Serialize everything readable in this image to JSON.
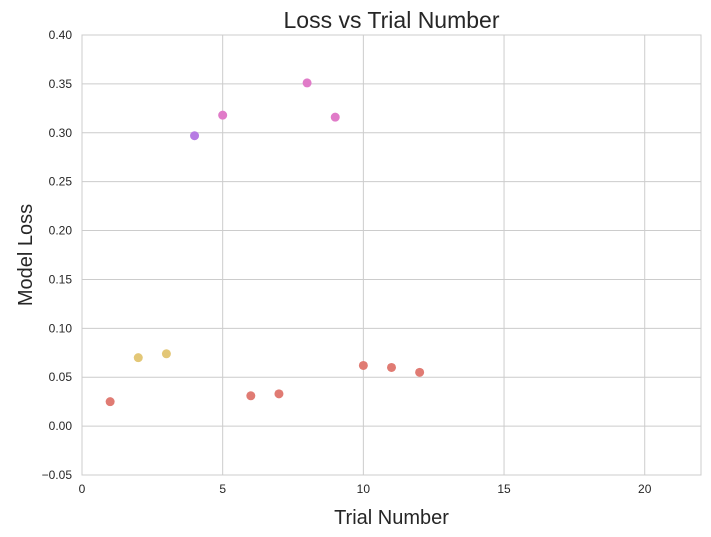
{
  "chart_data": {
    "type": "scatter",
    "title": "Loss vs Trial Number",
    "xlabel": "Trial Number",
    "ylabel": "Model Loss",
    "xlim": [
      0,
      22
    ],
    "ylim": [
      -0.05,
      0.4
    ],
    "grid": true,
    "x_ticks": [
      0,
      5,
      10,
      15,
      20
    ],
    "x_tick_labels": [
      "0",
      "5",
      "10",
      "15",
      "20"
    ],
    "y_ticks": [
      -0.05,
      0.0,
      0.05,
      0.1,
      0.15,
      0.2,
      0.25,
      0.3,
      0.35,
      0.4
    ],
    "y_tick_labels": [
      "−0.05",
      "0.00",
      "0.05",
      "0.10",
      "0.15",
      "0.20",
      "0.25",
      "0.30",
      "0.35",
      "0.40"
    ],
    "points": [
      {
        "x": 1,
        "y": 0.025,
        "color": "#e07b73"
      },
      {
        "x": 2,
        "y": 0.07,
        "color": "#e3c777"
      },
      {
        "x": 3,
        "y": 0.074,
        "color": "#e3c777"
      },
      {
        "x": 4,
        "y": 0.297,
        "color": "#b77be3"
      },
      {
        "x": 5,
        "y": 0.318,
        "color": "#e07bc8"
      },
      {
        "x": 6,
        "y": 0.031,
        "color": "#e07b73"
      },
      {
        "x": 7,
        "y": 0.033,
        "color": "#e07b73"
      },
      {
        "x": 8,
        "y": 0.351,
        "color": "#e07bc8"
      },
      {
        "x": 9,
        "y": 0.316,
        "color": "#e07bc8"
      },
      {
        "x": 10,
        "y": 0.062,
        "color": "#e07b73"
      },
      {
        "x": 11,
        "y": 0.06,
        "color": "#e07b73"
      },
      {
        "x": 12,
        "y": 0.055,
        "color": "#e07b73"
      }
    ]
  }
}
